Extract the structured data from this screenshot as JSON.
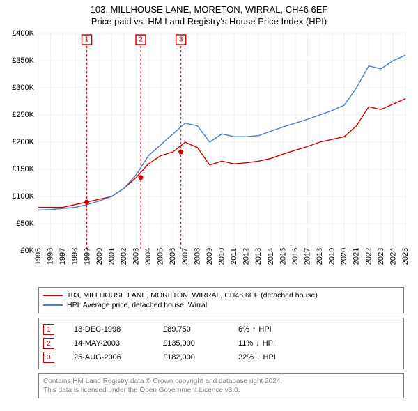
{
  "title_main": "103, MILLHOUSE LANE, MORETON, WIRRAL, CH46 6EF",
  "title_sub": "Price paid vs. HM Land Registry's House Price Index (HPI)",
  "chart": {
    "type": "line",
    "background_color": "#ffffff",
    "grid_color": "#f0f0f0",
    "axis_color": "#000000",
    "xlim_years": [
      1995,
      2025
    ],
    "ylim": [
      0,
      400000
    ],
    "ytick_step": 50000,
    "ytick_labels": [
      "£0K",
      "£50K",
      "£100K",
      "£150K",
      "£200K",
      "£250K",
      "£300K",
      "£350K",
      "£400K"
    ],
    "xtick_years": [
      1995,
      1996,
      1997,
      1998,
      1999,
      2000,
      2001,
      2002,
      2003,
      2004,
      2005,
      2006,
      2007,
      2008,
      2009,
      2010,
      2011,
      2012,
      2013,
      2014,
      2015,
      2016,
      2017,
      2018,
      2019,
      2020,
      2021,
      2022,
      2023,
      2024,
      2025
    ],
    "label_fontsize": 11,
    "series": [
      {
        "id": "property",
        "label": "103, MILLHOUSE LANE, MORETON, WIRRAL, CH46 6EF (detached house)",
        "color": "#d00000",
        "line_width": 1.4,
        "years": [
          1995,
          1996,
          1997,
          1998,
          1999,
          2000,
          2001,
          2002,
          2003,
          2004,
          2005,
          2006,
          2007,
          2008,
          2009,
          2010,
          2011,
          2012,
          2013,
          2014,
          2015,
          2016,
          2017,
          2018,
          2019,
          2020,
          2021,
          2022,
          2023,
          2024,
          2025
        ],
        "values": [
          80000,
          80000,
          80000,
          85000,
          90000,
          95000,
          100000,
          115000,
          135000,
          160000,
          175000,
          182000,
          200000,
          190000,
          158000,
          165000,
          160000,
          162000,
          165000,
          170000,
          178000,
          185000,
          192000,
          200000,
          205000,
          210000,
          230000,
          265000,
          260000,
          270000,
          280000
        ]
      },
      {
        "id": "hpi",
        "label": "HPI: Average price, detached house, Wirral",
        "color": "#4a7ec8",
        "line_width": 1.4,
        "years": [
          1995,
          1996,
          1997,
          1998,
          1999,
          2000,
          2001,
          2002,
          2003,
          2004,
          2005,
          2006,
          2007,
          2008,
          2009,
          2010,
          2011,
          2012,
          2013,
          2014,
          2015,
          2016,
          2017,
          2018,
          2019,
          2020,
          2021,
          2022,
          2023,
          2024,
          2025
        ],
        "values": [
          75000,
          76000,
          78000,
          80000,
          85000,
          92000,
          100000,
          115000,
          140000,
          175000,
          195000,
          215000,
          235000,
          230000,
          200000,
          215000,
          210000,
          210000,
          212000,
          220000,
          228000,
          235000,
          242000,
          250000,
          258000,
          268000,
          300000,
          340000,
          335000,
          350000,
          360000
        ]
      }
    ],
    "event_markers": [
      {
        "num": "1",
        "year": 1998.96,
        "color": "#d00000"
      },
      {
        "num": "2",
        "year": 2003.37,
        "color": "#d00000"
      },
      {
        "num": "3",
        "year": 2006.65,
        "color": "#d00000"
      }
    ],
    "event_points": [
      {
        "year": 1998.96,
        "value": 89750,
        "color": "#d00000"
      },
      {
        "year": 2003.37,
        "value": 135000,
        "color": "#d00000"
      },
      {
        "year": 2006.65,
        "value": 182000,
        "color": "#d00000"
      }
    ]
  },
  "legend": {
    "items": [
      {
        "color": "#d00000",
        "label": "103, MILLHOUSE LANE, MORETON, WIRRAL, CH46 6EF (detached house)"
      },
      {
        "color": "#4a7ec8",
        "label": "HPI: Average price, detached house, Wirral"
      }
    ]
  },
  "events_table": {
    "rows": [
      {
        "num": "1",
        "color": "#d00000",
        "date": "18-DEC-1998",
        "price": "£89,750",
        "delta_pct": "6%",
        "delta_arrow": "↑",
        "delta_label": "HPI"
      },
      {
        "num": "2",
        "color": "#d00000",
        "date": "14-MAY-2003",
        "price": "£135,000",
        "delta_pct": "11%",
        "delta_arrow": "↓",
        "delta_label": "HPI"
      },
      {
        "num": "3",
        "color": "#d00000",
        "date": "25-AUG-2006",
        "price": "£182,000",
        "delta_pct": "22%",
        "delta_arrow": "↓",
        "delta_label": "HPI"
      }
    ]
  },
  "footnote": {
    "line1": "Contains HM Land Registry data © Crown copyright and database right 2024.",
    "line2": "This data is licensed under the Open Government Licence v3.0."
  }
}
